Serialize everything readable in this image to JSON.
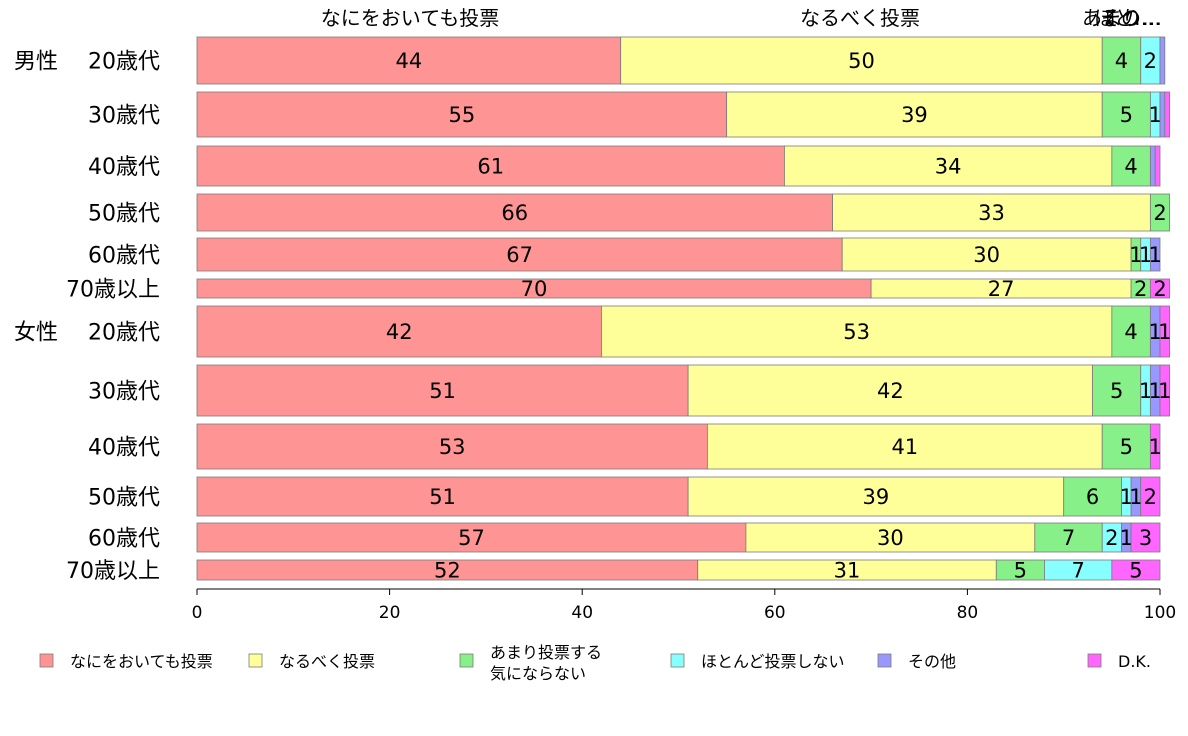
{
  "chart_data": {
    "type": "bar",
    "orientation": "horizontal",
    "stacked": true,
    "title": "",
    "xlabel": "",
    "ylabel": "",
    "xlim": [
      0,
      100
    ],
    "x_ticks": [
      0,
      20,
      40,
      60,
      80,
      100
    ],
    "grid": false,
    "legend_position": "bottom",
    "top_labels": [
      "なにをおいても投票",
      "なるべく投票",
      "あまり…",
      "ほと…",
      "その…"
    ],
    "group_labels": [
      "男性",
      "女性"
    ],
    "categories": [
      "20歳代",
      "30歳代",
      "40歳代",
      "50歳代",
      "60歳代",
      "70歳以上",
      "20歳代",
      "30歳代",
      "40歳代",
      "50歳代",
      "60歳代",
      "70歳以上"
    ],
    "series": [
      {
        "name": "なにをおいても投票",
        "color": "#ff9494",
        "values": [
          44,
          55,
          61,
          66,
          67,
          70,
          42,
          51,
          53,
          51,
          57,
          52
        ]
      },
      {
        "name": "なるべく投票",
        "color": "#ffff99",
        "values": [
          50,
          39,
          34,
          33,
          30,
          27,
          53,
          42,
          41,
          39,
          30,
          31
        ]
      },
      {
        "name": "あまり投票する気にならない",
        "name_lines": [
          "あまり投票する",
          "気にならない"
        ],
        "color": "#88f088",
        "values": [
          4,
          5,
          4,
          2,
          1,
          2,
          4,
          5,
          5,
          6,
          7,
          5
        ]
      },
      {
        "name": "ほとんど投票しない",
        "color": "#88ffff",
        "values": [
          2,
          1,
          0,
          0,
          1,
          0,
          0,
          1,
          0,
          1,
          2,
          7
        ]
      },
      {
        "name": "その他",
        "color": "#9898ff",
        "values": [
          0.5,
          0.5,
          0.5,
          0,
          1,
          0,
          1,
          1,
          0,
          1,
          1,
          0
        ]
      },
      {
        "name": "D.K.",
        "color": "#ff66ff",
        "values": [
          0,
          0.5,
          0.5,
          0,
          0,
          2,
          1,
          1,
          1,
          2,
          3,
          5
        ]
      }
    ]
  }
}
